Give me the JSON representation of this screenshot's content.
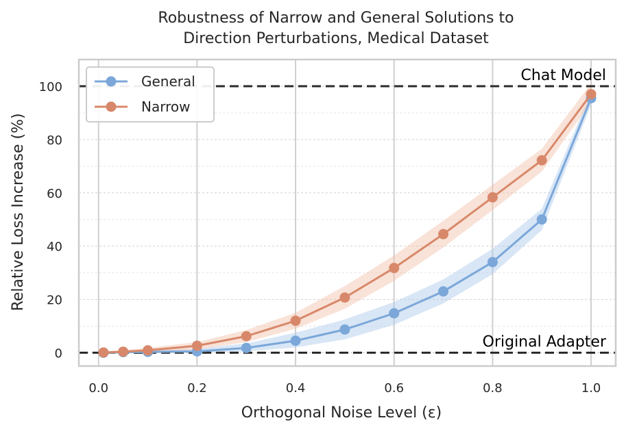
{
  "chart_data": {
    "type": "line",
    "title_lines": [
      "Robustness of Narrow and General Solutions to",
      "Direction Perturbations, Medical Dataset"
    ],
    "xlabel": "Orthogonal Noise Level (ε)",
    "ylabel": "Relative Loss Increase (%)",
    "xlim": [
      -0.04,
      1.05
    ],
    "ylim": [
      -5,
      110
    ],
    "xticks": [
      0.0,
      0.2,
      0.4,
      0.6,
      0.8,
      1.0
    ],
    "xtick_labels": [
      "0.0",
      "0.2",
      "0.4",
      "0.6",
      "0.8",
      "1.0"
    ],
    "yticks": [
      0,
      20,
      40,
      60,
      80,
      100
    ],
    "ytick_labels": [
      "0",
      "20",
      "40",
      "60",
      "80",
      "100"
    ],
    "y_minor_gridlines": [
      10,
      30,
      50,
      70,
      90
    ],
    "x": [
      0.01,
      0.05,
      0.1,
      0.2,
      0.3,
      0.4,
      0.5,
      0.6,
      0.7,
      0.8,
      0.9,
      1.0
    ],
    "series": [
      {
        "name": "General",
        "color": "#7ba7d9",
        "band_color": "#a9c7ea",
        "values": [
          0.0,
          0.2,
          0.3,
          0.5,
          1.8,
          4.5,
          8.7,
          14.8,
          23.0,
          34.0,
          50.0,
          95.5
        ],
        "lower": [
          0.0,
          0.0,
          0.0,
          0.0,
          0.5,
          2.0,
          5.0,
          10.5,
          18.5,
          29.5,
          46.0,
          93.0
        ],
        "upper": [
          0.3,
          0.5,
          0.8,
          1.5,
          3.5,
          7.5,
          12.5,
          19.0,
          27.5,
          39.0,
          54.0,
          98.0
        ]
      },
      {
        "name": "Narrow",
        "color": "#d8886a",
        "band_color": "#f2bfa6",
        "values": [
          0.1,
          0.4,
          0.9,
          2.6,
          6.2,
          12.0,
          20.7,
          31.8,
          44.5,
          58.3,
          72.2,
          97.0
        ],
        "lower": [
          0.0,
          0.0,
          0.2,
          1.2,
          4.0,
          9.0,
          16.5,
          27.0,
          39.5,
          53.5,
          68.0,
          94.0
        ],
        "upper": [
          0.4,
          1.0,
          1.8,
          4.0,
          8.5,
          15.0,
          25.0,
          36.5,
          49.5,
          63.0,
          76.5,
          101.0
        ]
      }
    ],
    "reference_lines": [
      {
        "y": 100,
        "label": "Chat Model"
      },
      {
        "y": 0,
        "label": "Original Adapter"
      }
    ],
    "legend_position": "top-left"
  }
}
